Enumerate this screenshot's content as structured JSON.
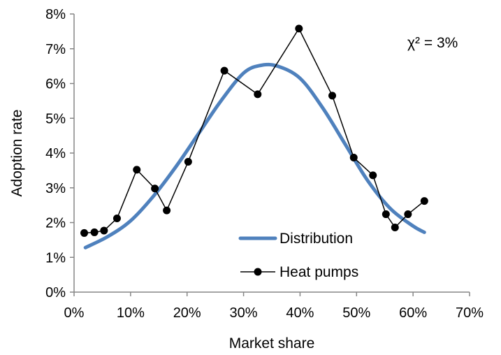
{
  "chart_data": {
    "type": "line",
    "xlabel": "Market share",
    "ylabel": "Adoption rate",
    "xlim": [
      0,
      70
    ],
    "ylim": [
      0,
      8
    ],
    "x_ticks": [
      "0%",
      "10%",
      "20%",
      "30%",
      "40%",
      "50%",
      "60%",
      "70%"
    ],
    "y_ticks": [
      "0%",
      "1%",
      "2%",
      "3%",
      "4%",
      "5%",
      "6%",
      "7%",
      "8%"
    ],
    "annotation": "χ² = 3%",
    "legend_position": "bottom-center",
    "grid": false,
    "series": [
      {
        "name": "Distribution",
        "style": "smooth-line",
        "color": "#4f81bd",
        "x": [
          2,
          6,
          10,
          14,
          18,
          22,
          26,
          30,
          33,
          36,
          40,
          44,
          48,
          52,
          56,
          60,
          62
        ],
        "y": [
          1.28,
          1.6,
          2.05,
          2.75,
          3.6,
          4.55,
          5.5,
          6.3,
          6.52,
          6.5,
          6.15,
          5.3,
          4.25,
          3.2,
          2.4,
          1.9,
          1.72
        ]
      },
      {
        "name": "Heat pumps",
        "style": "line-markers",
        "color": "#000000",
        "x": [
          1.8,
          3.6,
          5.3,
          7.6,
          11.1,
          14.3,
          16.4,
          20.2,
          26.6,
          32.5,
          39.8,
          45.7,
          49.5,
          52.9,
          55.2,
          56.8,
          59.1,
          62.0
        ],
        "y": [
          1.7,
          1.72,
          1.77,
          2.12,
          3.52,
          2.98,
          2.35,
          3.75,
          6.37,
          5.69,
          7.58,
          5.65,
          3.87,
          3.36,
          2.24,
          1.86,
          2.24,
          2.62
        ]
      }
    ]
  }
}
